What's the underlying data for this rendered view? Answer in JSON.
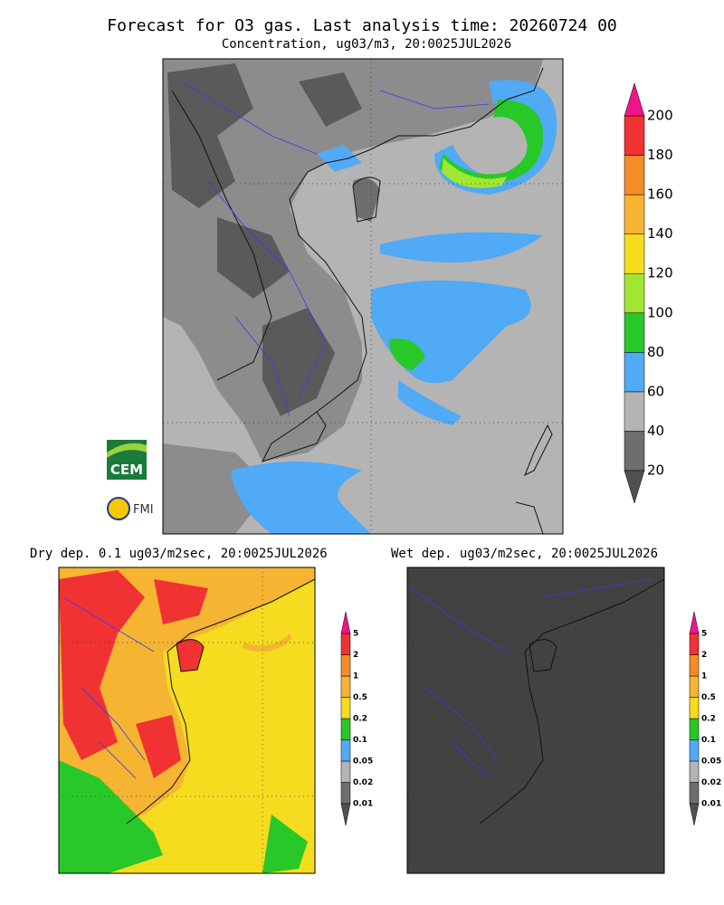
{
  "header": {
    "title": "Forecast for O3 gas. Last analysis time: 20260724 00",
    "subtitle": "Concentration, ug03/m3, 20:0025JUL2026"
  },
  "main_legend": {
    "labels": [
      "20",
      "40",
      "60",
      "80",
      "100",
      "120",
      "140",
      "160",
      "180",
      "200"
    ],
    "colors": [
      "#6e6e6e",
      "#b4b4b4",
      "#50aaf5",
      "#28c828",
      "#a0e632",
      "#f5dc1e",
      "#f5b432",
      "#f58c28",
      "#f03232"
    ],
    "low_color": "#505050",
    "high_color": "#f0148c"
  },
  "logos": {
    "cem": "CEM",
    "fmi": "FMI"
  },
  "dry_panel": {
    "title": "Dry dep. 0.1 ug03/m2sec, 20:0025JUL2026"
  },
  "wet_panel": {
    "title": "Wet dep. ug03/m2sec, 20:0025JUL2026"
  },
  "small_legend": {
    "labels": [
      "0.01",
      "0.02",
      "0.05",
      "0.1",
      "0.2",
      "0.5",
      "1",
      "2",
      "5"
    ],
    "colors": [
      "#6e6e6e",
      "#b4b4b4",
      "#50aaf5",
      "#28c828",
      "#f5dc1e",
      "#f5b432",
      "#f58c28",
      "#f03232"
    ],
    "low_color": "#505050",
    "high_color": "#f0148c"
  }
}
